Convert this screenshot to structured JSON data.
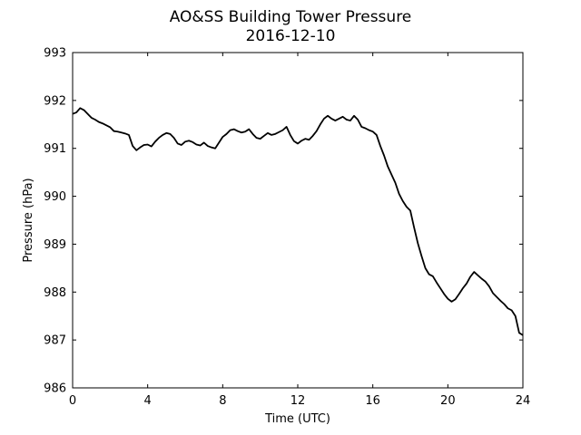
{
  "chart_data": {
    "type": "line",
    "title": "AO&SS Building Tower Pressure",
    "subtitle": "2016-12-10",
    "xlabel": "Time (UTC)",
    "ylabel": "Pressure (hPa)",
    "xlim": [
      0,
      24
    ],
    "ylim": [
      986,
      993
    ],
    "xticks": [
      0,
      4,
      8,
      12,
      16,
      20,
      24
    ],
    "yticks": [
      986,
      987,
      988,
      989,
      990,
      991,
      992,
      993
    ],
    "grid": false,
    "line_color": "#000000",
    "series": [
      {
        "x": [
          0.0,
          0.2,
          0.4,
          0.6,
          0.8,
          1.0,
          1.2,
          1.4,
          1.6,
          1.8,
          2.0,
          2.2,
          2.4,
          2.6,
          2.8,
          3.0,
          3.2,
          3.4,
          3.6,
          3.8,
          4.0,
          4.2,
          4.4,
          4.6,
          4.8,
          5.0,
          5.2,
          5.4,
          5.6,
          5.8,
          6.0,
          6.2,
          6.4,
          6.6,
          6.8,
          7.0,
          7.2,
          7.4,
          7.6,
          7.8,
          8.0,
          8.2,
          8.4,
          8.6,
          8.8,
          9.0,
          9.2,
          9.4,
          9.6,
          9.8,
          10.0,
          10.2,
          10.4,
          10.6,
          10.8,
          11.0,
          11.2,
          11.4,
          11.6,
          11.8,
          12.0,
          12.2,
          12.4,
          12.6,
          12.8,
          13.0,
          13.2,
          13.4,
          13.6,
          13.8,
          14.0,
          14.2,
          14.4,
          14.6,
          14.8,
          15.0,
          15.2,
          15.4,
          15.6,
          15.8,
          16.0,
          16.2,
          16.4,
          16.6,
          16.8,
          17.0,
          17.2,
          17.4,
          17.6,
          17.8,
          18.0,
          18.2,
          18.4,
          18.6,
          18.8,
          19.0,
          19.2,
          19.4,
          19.6,
          19.8,
          20.0,
          20.2,
          20.4,
          20.6,
          20.8,
          21.0,
          21.2,
          21.4,
          21.6,
          21.8,
          22.0,
          22.2,
          22.4,
          22.6,
          22.8,
          23.0,
          23.2,
          23.4,
          23.6,
          23.8,
          24.0
        ],
        "values": [
          991.72,
          991.75,
          991.84,
          991.8,
          991.72,
          991.64,
          991.6,
          991.55,
          991.52,
          991.48,
          991.44,
          991.36,
          991.35,
          991.33,
          991.31,
          991.28,
          991.05,
          990.96,
          991.02,
          991.07,
          991.08,
          991.04,
          991.14,
          991.22,
          991.28,
          991.32,
          991.3,
          991.22,
          991.1,
          991.07,
          991.14,
          991.16,
          991.13,
          991.08,
          991.06,
          991.12,
          991.05,
          991.02,
          991.0,
          991.12,
          991.24,
          991.3,
          991.38,
          991.4,
          991.36,
          991.33,
          991.35,
          991.4,
          991.3,
          991.22,
          991.2,
          991.26,
          991.32,
          991.28,
          991.3,
          991.34,
          991.38,
          991.45,
          991.28,
          991.15,
          991.1,
          991.16,
          991.2,
          991.18,
          991.26,
          991.36,
          991.5,
          991.62,
          991.68,
          991.62,
          991.58,
          991.62,
          991.66,
          991.6,
          991.58,
          991.68,
          991.6,
          991.45,
          991.42,
          991.38,
          991.35,
          991.28,
          991.05,
          990.85,
          990.62,
          990.45,
          990.28,
          990.05,
          989.9,
          989.78,
          989.7,
          989.35,
          989.02,
          988.75,
          988.5,
          988.37,
          988.33,
          988.2,
          988.08,
          987.96,
          987.86,
          987.8,
          987.85,
          987.96,
          988.08,
          988.18,
          988.32,
          988.42,
          988.35,
          988.28,
          988.22,
          988.12,
          987.98,
          987.9,
          987.82,
          987.75,
          987.66,
          987.62,
          987.5,
          987.15,
          987.1
        ]
      }
    ]
  }
}
